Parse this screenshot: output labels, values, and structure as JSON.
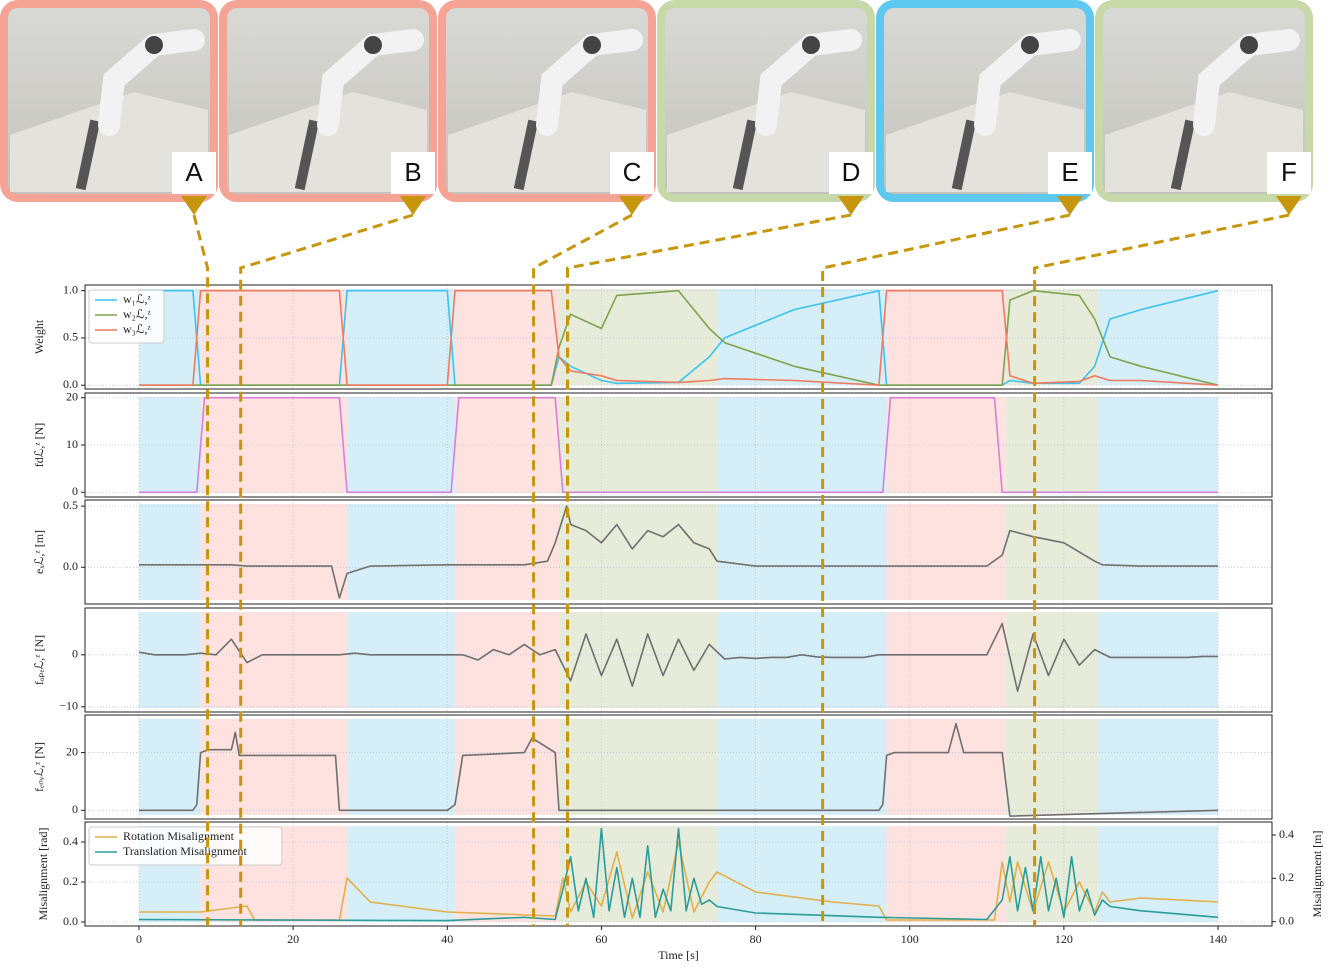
{
  "photos": [
    {
      "label": "A",
      "time": 8.9,
      "border": "#f5a394"
    },
    {
      "label": "B",
      "time": 13.2,
      "border": "#f5a394"
    },
    {
      "label": "C",
      "time": 51.2,
      "border": "#f5a394"
    },
    {
      "label": "D",
      "time": 55.6,
      "border": "#c8d9a9"
    },
    {
      "label": "E",
      "time": 88.7,
      "border": "#5ec9f0"
    },
    {
      "label": "F",
      "time": 116.2,
      "border": "#c8d9a9"
    }
  ],
  "phases": [
    {
      "start": 0,
      "end": 8,
      "color": "#d6eef8"
    },
    {
      "start": 8,
      "end": 27,
      "color": "#fde2df"
    },
    {
      "start": 27,
      "end": 41,
      "color": "#d6eef8"
    },
    {
      "start": 41,
      "end": 54.5,
      "color": "#fde2df"
    },
    {
      "start": 54.5,
      "end": 75,
      "color": "#e7ebd9"
    },
    {
      "start": 75,
      "end": 97,
      "color": "#d6eef8"
    },
    {
      "start": 97,
      "end": 112.5,
      "color": "#fde2df"
    },
    {
      "start": 112.5,
      "end": 124.5,
      "color": "#e7ebd9"
    },
    {
      "start": 124.5,
      "end": 140,
      "color": "#d6eef8"
    }
  ],
  "x_axis": {
    "xlim": [
      -7,
      147
    ],
    "xticks": [
      0,
      20,
      40,
      60,
      80,
      100,
      120,
      140
    ],
    "xlabel": "Time [s]",
    "grid": true
  },
  "chart_data": [
    {
      "type": "line",
      "ylabel": "Weight",
      "ylim": [
        -0.04,
        1.06
      ],
      "yticks": [
        {
          "value": 0,
          "label": "0.0"
        },
        {
          "value": 0.5,
          "label": "0.5"
        },
        {
          "value": 1,
          "label": "1.0"
        }
      ],
      "grid": true,
      "legend": "upper left",
      "x": [
        0,
        7,
        8,
        26,
        27,
        40,
        41,
        53.5,
        54.5,
        56,
        60,
        62,
        70,
        74,
        76,
        85,
        96,
        97,
        112,
        113,
        116,
        122,
        124,
        126,
        130,
        140
      ],
      "series": [
        {
          "name": "w₁ℒ,ᶻ",
          "color": "#3cc3ef",
          "values": [
            1,
            1,
            0,
            0,
            1,
            1,
            0,
            0,
            0.3,
            0.2,
            0.05,
            0.02,
            0.03,
            0.3,
            0.5,
            0.8,
            1,
            0,
            0,
            0.05,
            0.02,
            0.02,
            0.2,
            0.7,
            0.8,
            1
          ]
        },
        {
          "name": "w₂ℒ,ᶻ",
          "color": "#7fa34b",
          "values": [
            0,
            0,
            0,
            0,
            0,
            0,
            0,
            0,
            0.4,
            0.75,
            0.6,
            0.95,
            1,
            0.6,
            0.45,
            0.2,
            0,
            0,
            0,
            0.9,
            1,
            0.95,
            0.7,
            0.3,
            0.2,
            0
          ]
        },
        {
          "name": "w₃ℒ,ᶻ",
          "color": "#ee7a5f",
          "values": [
            0,
            0,
            1,
            1,
            0,
            0,
            1,
            1,
            0.3,
            0.15,
            0.1,
            0.05,
            0.03,
            0.05,
            0.07,
            0.05,
            0,
            1,
            1,
            0.1,
            0.02,
            0.04,
            0.1,
            0.05,
            0.05,
            0
          ]
        }
      ]
    },
    {
      "type": "line",
      "ylabel": "fdℒ,ᶻ [N]",
      "ylim": [
        -1,
        21
      ],
      "yticks": [
        0,
        10,
        20
      ],
      "grid": true,
      "x": [
        0,
        7.5,
        8.5,
        26,
        27,
        40.5,
        41.5,
        54,
        55,
        96.5,
        97.5,
        111,
        112,
        140
      ],
      "series": [
        {
          "color": "#d67fdc",
          "values": [
            0,
            0,
            20,
            20,
            0,
            0,
            20,
            20,
            0,
            0,
            20,
            20,
            0,
            0
          ]
        }
      ]
    },
    {
      "type": "line",
      "ylabel": "eₓℒ,ᶻ [m]",
      "ylim": [
        -0.3,
        0.55
      ],
      "yticks": [
        {
          "value": 0,
          "label": "0.0"
        },
        {
          "value": 0.5,
          "label": "0.5"
        }
      ],
      "grid": true,
      "x": [
        0,
        8,
        12,
        14,
        25,
        26,
        27,
        30,
        40,
        50,
        53,
        54,
        55.5,
        56,
        58,
        60,
        62,
        64,
        66,
        68,
        70,
        72,
        74,
        75,
        80,
        90,
        100,
        110,
        112,
        113,
        116,
        120,
        124,
        125,
        130,
        140
      ],
      "series": [
        {
          "color": "#6f6f6f",
          "values": [
            0.02,
            0.02,
            0.02,
            0.01,
            0.01,
            -0.25,
            -0.05,
            0.01,
            0.02,
            0.02,
            0.05,
            0.2,
            0.5,
            0.35,
            0.3,
            0.2,
            0.35,
            0.15,
            0.3,
            0.25,
            0.35,
            0.2,
            0.15,
            0.05,
            0.01,
            0.01,
            0.01,
            0.01,
            0.1,
            0.3,
            0.25,
            0.2,
            0.05,
            0.02,
            0.01,
            0.01
          ]
        }
      ]
    },
    {
      "type": "line",
      "ylabel": "fₒₚₑℒ,ᶻ [N]",
      "ylim": [
        -11,
        9
      ],
      "yticks": [
        {
          "value": -10,
          "label": "−10"
        },
        0
      ],
      "grid": true,
      "x": [
        0,
        2,
        4,
        6,
        8,
        10,
        12,
        14,
        16,
        18,
        20,
        22,
        24,
        26,
        28,
        30,
        32,
        34,
        36,
        38,
        40,
        42,
        44,
        46,
        48,
        50,
        52,
        54,
        56,
        58,
        60,
        62,
        64,
        66,
        68,
        70,
        72,
        74,
        76,
        78,
        80,
        82,
        84,
        86,
        88,
        90,
        92,
        94,
        96,
        98,
        100,
        102,
        104,
        106,
        108,
        110,
        112,
        114,
        116,
        118,
        120,
        122,
        124,
        126,
        128,
        130,
        132,
        134,
        136,
        138,
        140
      ],
      "series": [
        {
          "color": "#6f6f6f",
          "values": [
            0.5,
            0,
            0,
            0,
            0.3,
            0,
            3,
            -1.5,
            0,
            0,
            0,
            0,
            0,
            0,
            0.3,
            0,
            0,
            0,
            0,
            0,
            0,
            0,
            -1,
            1,
            0,
            2,
            0,
            1,
            -5,
            4,
            -4,
            3,
            -6,
            4,
            -4,
            3,
            -3,
            2,
            -0.8,
            -0.5,
            -0.7,
            -0.5,
            -0.5,
            0,
            -0.4,
            -0.5,
            -0.5,
            -0.5,
            0,
            0,
            0,
            0,
            0,
            0,
            0,
            0,
            6,
            -7,
            4,
            -4,
            3,
            -2,
            1,
            -0.5,
            -0.5,
            -0.5,
            -0.5,
            -0.5,
            -0.5,
            -0.3,
            -0.3
          ]
        }
      ]
    },
    {
      "type": "line",
      "ylabel": "fₑₙᵥℒ,ᶻ [N]",
      "ylim": [
        -3,
        33
      ],
      "yticks": [
        0,
        20
      ],
      "grid": true,
      "x": [
        0,
        7,
        7.5,
        8,
        9,
        12,
        12.5,
        13,
        14,
        25.5,
        26,
        40,
        41,
        42,
        50,
        51,
        54,
        54.5,
        96,
        96.5,
        97,
        98,
        105,
        106,
        107,
        111,
        112,
        113,
        140
      ],
      "series": [
        {
          "color": "#6f6f6f",
          "values": [
            0,
            0,
            2,
            20,
            21,
            21,
            27,
            19,
            19,
            19,
            0,
            0,
            2,
            19,
            20,
            25,
            20,
            0,
            0,
            2,
            19,
            20,
            20,
            30,
            20,
            20,
            20,
            -2,
            0
          ]
        }
      ]
    },
    {
      "type": "line",
      "ylabel": "Misalignment [rad]",
      "y2label": "Misalignment [m]",
      "ylim": [
        -0.02,
        0.5
      ],
      "yticks": [
        {
          "value": 0,
          "label": "0.0"
        },
        {
          "value": 0.2,
          "label": "0.2"
        },
        {
          "value": 0.4,
          "label": "0.4"
        }
      ],
      "y2lim": [
        -0.02,
        0.46
      ],
      "y2ticks": [
        {
          "value": 0,
          "label": "0.0"
        },
        {
          "value": 0.2,
          "label": "0.2"
        },
        {
          "value": 0.4,
          "label": "0.4"
        }
      ],
      "grid": true,
      "legend": "upper left",
      "series": [
        {
          "name": "Rotation Misalignment",
          "color": "#e2b04a",
          "x": [
            0,
            8,
            14,
            15,
            26,
            27,
            30,
            40,
            54,
            55,
            56,
            58,
            60,
            62,
            64,
            66,
            68,
            70,
            72,
            74,
            75,
            80,
            90,
            96,
            97,
            111,
            112,
            113,
            114,
            116,
            118,
            120,
            122,
            124,
            125,
            126,
            130,
            140
          ],
          "values": [
            0.05,
            0.05,
            0.08,
            0.01,
            0.01,
            0.22,
            0.1,
            0.05,
            0.03,
            0.22,
            0.05,
            0.2,
            0.08,
            0.35,
            0.02,
            0.25,
            0.05,
            0.4,
            0.05,
            0.2,
            0.25,
            0.15,
            0.1,
            0.08,
            0.01,
            0.01,
            0.3,
            0.1,
            0.3,
            0.05,
            0.3,
            0.05,
            0.2,
            0.05,
            0.15,
            0.1,
            0.12,
            0.1
          ]
        },
        {
          "name": "Translation Misalignment",
          "color": "#2a9d9a",
          "axis": "y2",
          "x": [
            0,
            40,
            50,
            54,
            55,
            56,
            57,
            58,
            59,
            60,
            61,
            62,
            63,
            64,
            65,
            66,
            67,
            68,
            69,
            70,
            71,
            72,
            73,
            74,
            75,
            80,
            96,
            110,
            112,
            113,
            114,
            115,
            116,
            117,
            118,
            119,
            120,
            121,
            122,
            123,
            124,
            125,
            126,
            130,
            140
          ],
          "values": [
            0.01,
            0.005,
            0.02,
            0.01,
            0.15,
            0.3,
            0.05,
            0.2,
            0.02,
            0.43,
            0.05,
            0.25,
            0.02,
            0.2,
            0.02,
            0.35,
            0.02,
            0.15,
            0.05,
            0.43,
            0.05,
            0.2,
            0.08,
            0.1,
            0.07,
            0.04,
            0.02,
            0.01,
            0.1,
            0.3,
            0.05,
            0.25,
            0.05,
            0.3,
            0.05,
            0.2,
            0.02,
            0.3,
            0.05,
            0.15,
            0.03,
            0.1,
            0.07,
            0.05,
            0.02
          ]
        }
      ]
    }
  ]
}
